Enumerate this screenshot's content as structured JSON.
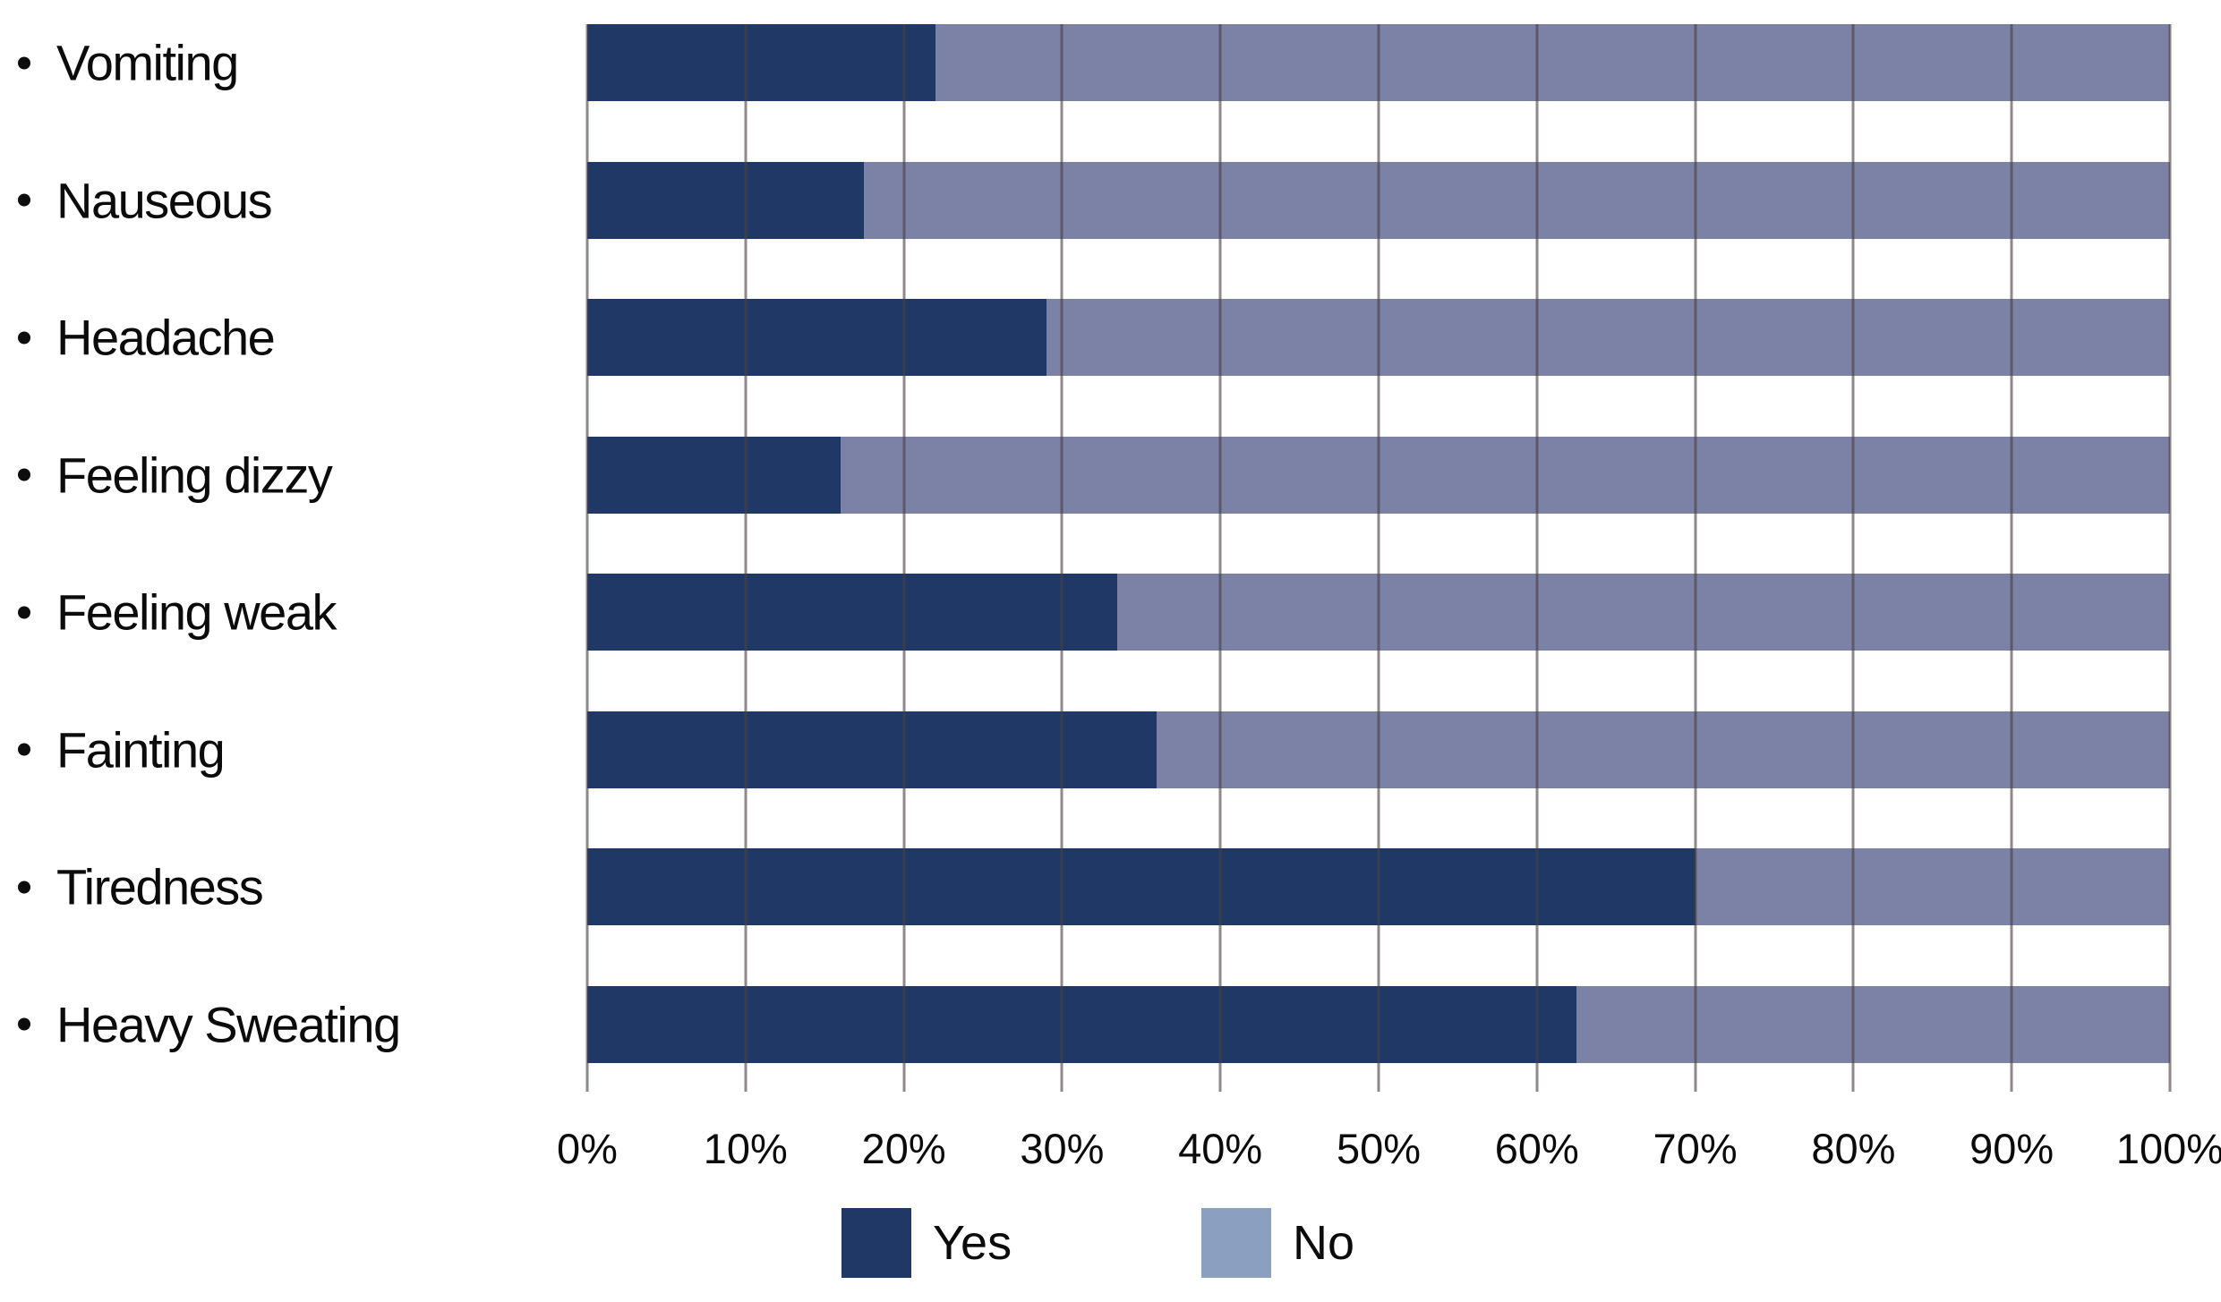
{
  "chart_data": {
    "type": "bar",
    "orientation": "horizontal",
    "stacked": true,
    "title": "",
    "xlabel": "",
    "ylabel": "",
    "categories": [
      "Vomiting",
      "Nauseous",
      "Headache",
      "Feeling dizzy",
      "Feeling weak",
      "Fainting",
      "Tiredness",
      "Heavy Sweating"
    ],
    "series": [
      {
        "name": "Yes",
        "values": [
          22,
          17.5,
          29,
          16,
          33.5,
          36,
          70,
          62.5
        ]
      },
      {
        "name": "No",
        "values": [
          78,
          82.5,
          71,
          84,
          66.5,
          64,
          30,
          37.5
        ]
      }
    ],
    "xlim": [
      0,
      100
    ],
    "x_tick_labels": [
      "0%",
      "10%",
      "20%",
      "30%",
      "40%",
      "50%",
      "60%",
      "70%",
      "80%",
      "90%",
      "100%"
    ],
    "grid": true,
    "legend_position": "bottom",
    "colors": {
      "yes_bar": "#1F3866",
      "no_bar": "#7B82A6",
      "legend_yes_swatch": "#1F3866",
      "legend_no_swatch": "#8BA0C1",
      "gridline": "#8A8284",
      "text": "#0B0B0B"
    }
  }
}
